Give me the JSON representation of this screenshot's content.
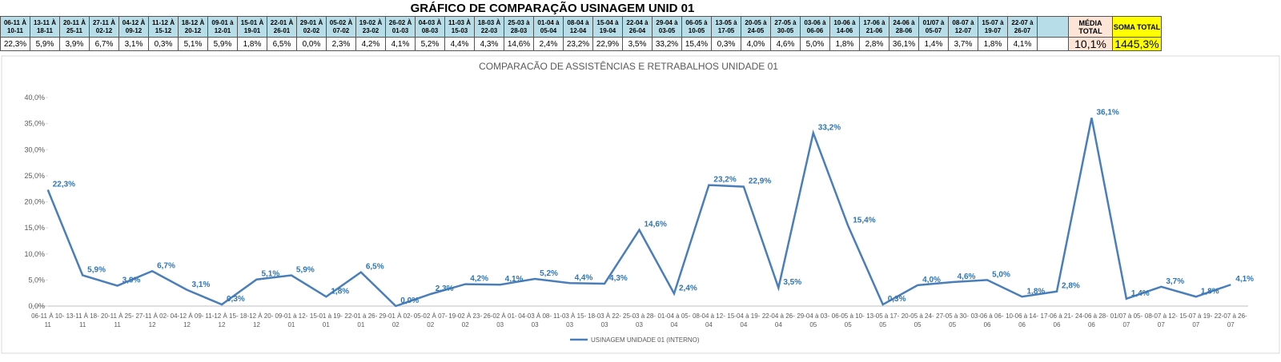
{
  "table": {
    "title": "GRÁFICO DE COMPARAÇÃO USINAGEM UNID 01",
    "headers": [
      "06-11 À 10-11",
      "13-11 À 18-11",
      "20-11 À 25-11",
      "27-11 À 02-12",
      "04-12 À 09-12",
      "11-12 À 15-12",
      "18-12 À 20-12",
      "09-01 à 12-01",
      "15-01 À 19-01",
      "22-01 À 26-01",
      "29-01 À 02-02",
      "05-02 À 07-02",
      "19-02 À 23-02",
      "26-02 À 01-03",
      "04-03 À 08-03",
      "11-03 À 15-03",
      "18-03 À 22-03",
      "25-03 à 28-03",
      "01-04 à 05-04",
      "08-04 à 12-04",
      "15-04 à 19-04",
      "22-04 à 26-04",
      "29-04 à 03-05",
      "06-05 à 10-05",
      "13-05 à 17-05",
      "20-05 à 24-05",
      "27-05 à 30-05",
      "03-06 à 06-06",
      "10-06 à 14-06",
      "17-06 à 21-06",
      "24-06 à 28-06",
      "01/07 à 05-07",
      "08-07 à 12-07",
      "15-07 à 19-07",
      "22-07 à 26-07"
    ],
    "values": [
      "22,3%",
      "5,9%",
      "3,9%",
      "6,7%",
      "3,1%",
      "0,3%",
      "5,1%",
      "5,9%",
      "1,8%",
      "6,5%",
      "0,0%",
      "2,3%",
      "4,2%",
      "4,1%",
      "5,2%",
      "4,4%",
      "4,3%",
      "14,6%",
      "2,4%",
      "23,2%",
      "22,9%",
      "3,5%",
      "33,2%",
      "15,4%",
      "0,3%",
      "4,0%",
      "4,6%",
      "5,0%",
      "1,8%",
      "2,8%",
      "36,1%",
      "1,4%",
      "3,7%",
      "1,8%",
      "4,1%"
    ],
    "media": {
      "label": "MÉDIA TOTAL",
      "value": "10,1%"
    },
    "soma": {
      "label": "SOMA TOTAL",
      "value": "1445,3%"
    }
  },
  "chart_data": {
    "type": "line",
    "title": "COMPARACÃO DE ASSISTÊNCIAS E RETRABALHOS UNIDADE 01",
    "categories": [
      "06-11 À 10-11",
      "13-11 À 18-11",
      "20-11 À 25-11",
      "27-11 À 02-12",
      "04-12 À 09-12",
      "11-12 À 15-12",
      "18-12 À 20-12",
      "09-01 à 12-01",
      "15-01 à 19-01",
      "22-01 à 26-01",
      "29-01 À 02-02",
      "05-02 À 07-02",
      "19-02 À 23-02",
      "26-02 À 01-03",
      "04-03 À 08-03",
      "11-03 À 15-03",
      "18-03 À 22-03",
      "25-03 à 28-03",
      "01-04 à 05-04",
      "08-04 à 12-04",
      "15-04 à 19-04",
      "22-04 à 26-04",
      "29-04 à 03-05",
      "06-05 à 10-05",
      "13-05 à 17-05",
      "20-05 à 24-05",
      "27-05 à 30-05",
      "03-06 à 06-06",
      "10-06 à 14-06",
      "17-06 à 21-06",
      "24-06 à 28-06",
      "01/07 à 05-07",
      "08-07 à 12-07",
      "15-07 à 19-07",
      "22-07 à 26-07"
    ],
    "series": [
      {
        "name": "USINAGEM UNIDADE 01 (INTERNO)",
        "color": "#4a7ebb",
        "values": [
          22.3,
          5.9,
          3.9,
          6.7,
          3.1,
          0.3,
          5.1,
          5.9,
          1.8,
          6.5,
          0.0,
          2.3,
          4.2,
          4.1,
          5.2,
          4.4,
          4.3,
          14.6,
          2.4,
          23.2,
          22.9,
          3.5,
          33.2,
          15.4,
          0.3,
          4.0,
          4.6,
          5.0,
          1.8,
          2.8,
          36.1,
          1.4,
          3.7,
          1.8,
          4.1
        ],
        "value_labels": [
          "22,3%",
          "5,9%",
          "3,9%",
          "6,7%",
          "3,1%",
          "0,3%",
          "5,1%",
          "5,9%",
          "1,8%",
          "6,5%",
          "0,0%",
          "2,3%",
          "4,2%",
          "4,1%",
          "5,2%",
          "4,4%",
          "4,3%",
          "14,6%",
          "2,4%",
          "23,2%",
          "22,9%",
          "3,5%",
          "33,2%",
          "15,4%",
          "0,3%",
          "4,0%",
          "4,6%",
          "5,0%",
          "1,8%",
          "2,8%",
          "36,1%",
          "1,4%",
          "3,7%",
          "1,8%",
          "4,1%"
        ]
      }
    ],
    "ylim": [
      0,
      40
    ],
    "yticks": [
      {
        "value": 0,
        "label": "0,0%"
      },
      {
        "value": 5,
        "label": "5,0%"
      },
      {
        "value": 10,
        "label": "10,0%"
      },
      {
        "value": 15,
        "label": "15,0%"
      },
      {
        "value": 20,
        "label": "20,0%"
      },
      {
        "value": 25,
        "label": "25,0%"
      },
      {
        "value": 30,
        "label": "30,0%"
      },
      {
        "value": 35,
        "label": "35,0%"
      },
      {
        "value": 40,
        "label": "40,0%"
      }
    ],
    "grid": false,
    "legend": "bottom"
  }
}
